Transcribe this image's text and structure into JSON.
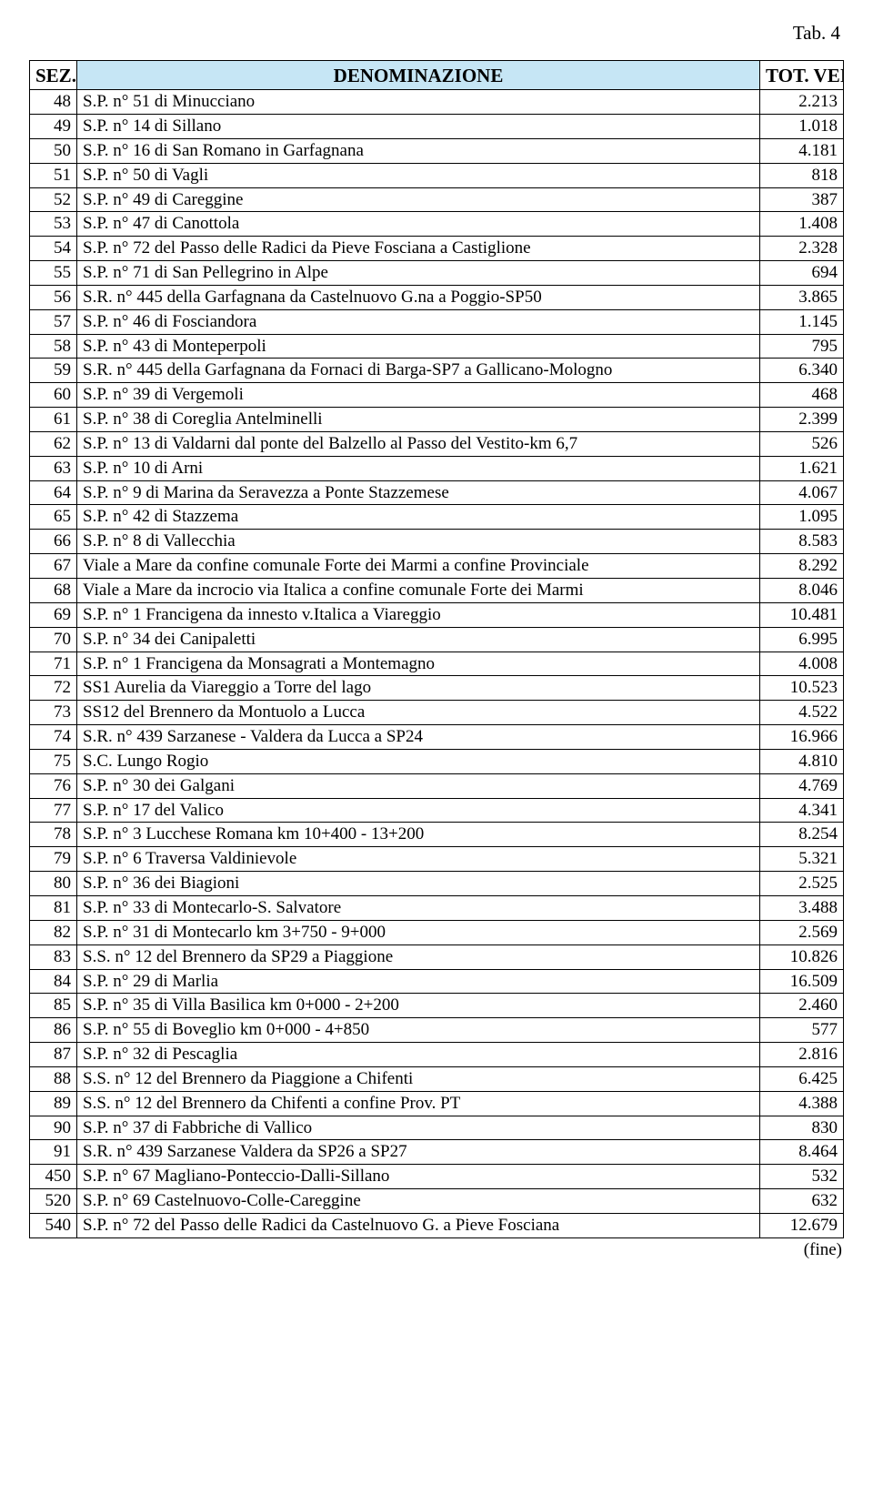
{
  "tab_label": "Tab.  4",
  "header_bg": "#c6e6f5",
  "columns": {
    "sez": "SEZ.",
    "denom": "DENOMINAZIONE",
    "tot": "TOT. VEIC."
  },
  "rows": [
    {
      "sez": "48",
      "denom": "S.P. n° 51 di Minucciano",
      "tot": "2.213"
    },
    {
      "sez": "49",
      "denom": "S.P. n° 14 di Sillano",
      "tot": "1.018"
    },
    {
      "sez": "50",
      "denom": "S.P. n° 16 di San Romano in Garfagnana",
      "tot": "4.181"
    },
    {
      "sez": "51",
      "denom": "S.P. n° 50 di Vagli",
      "tot": "818"
    },
    {
      "sez": "52",
      "denom": "S.P. n° 49 di Careggine",
      "tot": "387"
    },
    {
      "sez": "53",
      "denom": "S.P. n° 47 di Canottola",
      "tot": "1.408"
    },
    {
      "sez": "54",
      "denom": "S.P. n° 72 del Passo delle Radici da Pieve Fosciana a Castiglione",
      "tot": "2.328"
    },
    {
      "sez": "55",
      "denom": "S.P. n° 71  di San Pellegrino in Alpe",
      "tot": "694"
    },
    {
      "sez": "56",
      "denom": "S.R. n° 445 della Garfagnana da Castelnuovo G.na a Poggio-SP50",
      "tot": "3.865"
    },
    {
      "sez": "57",
      "denom": "S.P. n° 46 di Fosciandora",
      "tot": "1.145"
    },
    {
      "sez": "58",
      "denom": "S.P. n° 43 di Monteperpoli",
      "tot": "795"
    },
    {
      "sez": "59",
      "denom": "S.R. n° 445 della Garfagnana da Fornaci di Barga-SP7 a Gallicano-Mologno",
      "tot": "6.340"
    },
    {
      "sez": "60",
      "denom": "S.P. n° 39 di Vergemoli",
      "tot": "468"
    },
    {
      "sez": "61",
      "denom": "S.P. n° 38 di Coreglia Antelminelli",
      "tot": "2.399"
    },
    {
      "sez": "62",
      "denom": "S.P. n° 13 di Valdarni dal ponte del Balzello al Passo del Vestito-km 6,7",
      "tot": "526"
    },
    {
      "sez": "63",
      "denom": "S.P. n° 10 di Arni",
      "tot": "1.621"
    },
    {
      "sez": "64",
      "denom": "S.P. n° 9 di Marina da Seravezza a Ponte Stazzemese",
      "tot": "4.067"
    },
    {
      "sez": "65",
      "denom": "S.P. n° 42 di Stazzema",
      "tot": "1.095"
    },
    {
      "sez": "66",
      "denom": "S.P. n° 8 di Vallecchia",
      "tot": "8.583"
    },
    {
      "sez": "67",
      "denom": "Viale a Mare da confine comunale Forte dei Marmi a confine Provinciale",
      "tot": "8.292"
    },
    {
      "sez": "68",
      "denom": "Viale a Mare da incrocio via Italica a confine comunale Forte dei Marmi",
      "tot": "8.046"
    },
    {
      "sez": "69",
      "denom": "S.P. n° 1 Francigena da innesto v.Italica a Viareggio",
      "tot": "10.481"
    },
    {
      "sez": "70",
      "denom": "S.P. n° 34 dei Canipaletti",
      "tot": "6.995"
    },
    {
      "sez": "71",
      "denom": "S.P. n° 1 Francigena da Monsagrati a Montemagno",
      "tot": "4.008"
    },
    {
      "sez": "72",
      "denom": "SS1 Aurelia da Viareggio a Torre del lago",
      "tot": "10.523"
    },
    {
      "sez": "73",
      "denom": "SS12 del Brennero da Montuolo a Lucca",
      "tot": "4.522"
    },
    {
      "sez": "74",
      "denom": "S.R. n° 439 Sarzanese - Valdera da Lucca a SP24",
      "tot": "16.966"
    },
    {
      "sez": "75",
      "denom": "S.C. Lungo Rogio",
      "tot": "4.810"
    },
    {
      "sez": "76",
      "denom": "S.P. n° 30 dei Galgani",
      "tot": "4.769"
    },
    {
      "sez": "77",
      "denom": "S.P. n° 17 del Valico",
      "tot": "4.341"
    },
    {
      "sez": "78",
      "denom": "S.P. n° 3 Lucchese Romana km 10+400 - 13+200",
      "tot": "8.254"
    },
    {
      "sez": "79",
      "denom": "S.P. n° 6 Traversa Valdinievole",
      "tot": "5.321"
    },
    {
      "sez": "80",
      "denom": "S.P. n° 36 dei Biagioni",
      "tot": "2.525"
    },
    {
      "sez": "81",
      "denom": "S.P. n° 33 di Montecarlo-S. Salvatore",
      "tot": "3.488"
    },
    {
      "sez": "82",
      "denom": "S.P. n° 31 di Montecarlo km 3+750 - 9+000",
      "tot": "2.569"
    },
    {
      "sez": "83",
      "denom": "S.S. n° 12 del Brennero da SP29 a Piaggione",
      "tot": "10.826"
    },
    {
      "sez": "84",
      "denom": "S.P. n° 29 di Marlia",
      "tot": "16.509"
    },
    {
      "sez": "85",
      "denom": "S.P. n° 35 di Villa Basilica km 0+000 - 2+200",
      "tot": "2.460"
    },
    {
      "sez": "86",
      "denom": "S.P. n° 55 di Boveglio km 0+000 - 4+850",
      "tot": "577"
    },
    {
      "sez": "87",
      "denom": "S.P. n° 32 di Pescaglia",
      "tot": "2.816"
    },
    {
      "sez": "88",
      "denom": "S.S. n° 12 del Brennero da Piaggione a Chifenti",
      "tot": "6.425"
    },
    {
      "sez": "89",
      "denom": "S.S. n° 12 del Brennero da Chifenti a confine Prov. PT",
      "tot": "4.388"
    },
    {
      "sez": "90",
      "denom": "S.P. n° 37 di Fabbriche di Vallico",
      "tot": "830"
    },
    {
      "sez": "91",
      "denom": "S.R. n° 439 Sarzanese Valdera da SP26 a SP27",
      "tot": "8.464"
    },
    {
      "sez": "450",
      "denom": "S.P. n° 67 Magliano-Ponteccio-Dalli-Sillano",
      "tot": "532"
    },
    {
      "sez": "520",
      "denom": "S.P. n° 69 Castelnuovo-Colle-Careggine",
      "tot": "632"
    },
    {
      "sez": "540",
      "denom": "S.P. n° 72 del Passo delle Radici da Castelnuovo G. a Pieve Fosciana",
      "tot": "12.679"
    }
  ],
  "footer": "(fine)"
}
